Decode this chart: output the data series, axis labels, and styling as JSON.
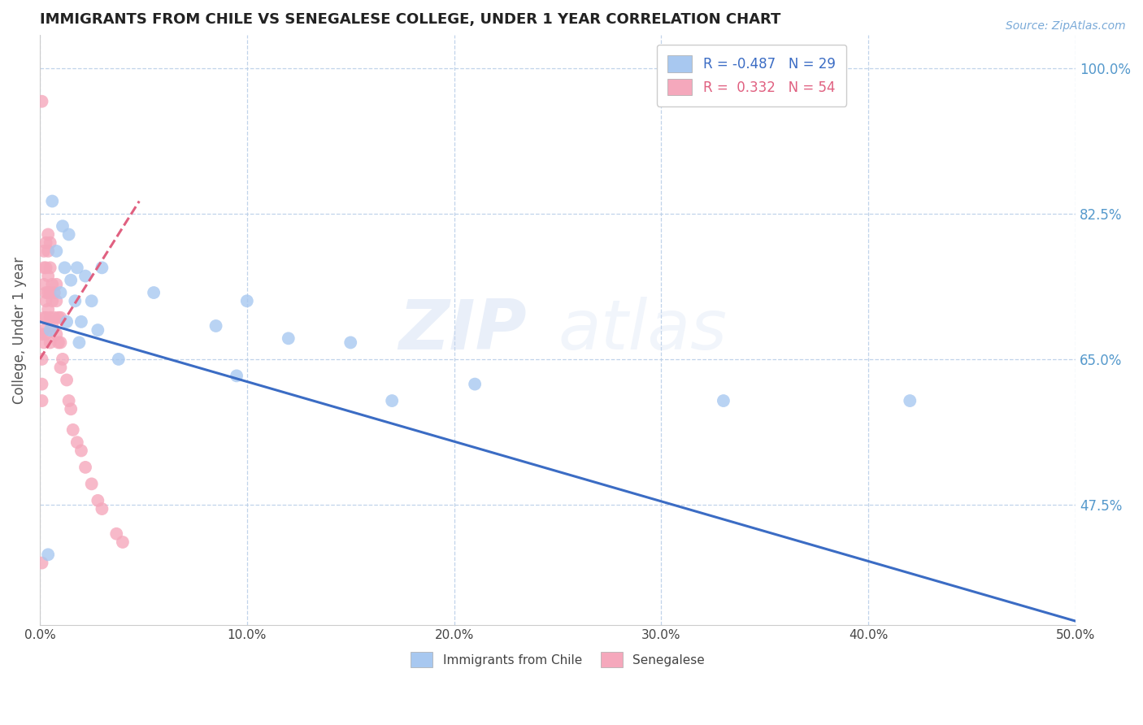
{
  "title": "IMMIGRANTS FROM CHILE VS SENEGALESE COLLEGE, UNDER 1 YEAR CORRELATION CHART",
  "source": "Source: ZipAtlas.com",
  "ylabel": "College, Under 1 year",
  "xlim": [
    0.0,
    0.5
  ],
  "ylim": [
    0.33,
    1.04
  ],
  "xticks": [
    0.0,
    0.1,
    0.2,
    0.3,
    0.4,
    0.5
  ],
  "xticklabels": [
    "0.0%",
    "10.0%",
    "20.0%",
    "30.0%",
    "40.0%",
    "50.0%"
  ],
  "yticks": [
    0.475,
    0.65,
    0.825,
    1.0
  ],
  "yticklabels": [
    "47.5%",
    "65.0%",
    "82.5%",
    "100.0%"
  ],
  "legend1_r": "R = -0.487",
  "legend1_n": "N = 29",
  "legend2_r": "R =  0.332",
  "legend2_n": "N = 54",
  "legend_bottom_label1": "Immigrants from Chile",
  "legend_bottom_label2": "Senegalese",
  "watermark_zip": "ZIP",
  "watermark_atlas": "atlas",
  "blue_color": "#A8C8F0",
  "pink_color": "#F5A8BC",
  "blue_line_color": "#3B6CC4",
  "pink_line_color": "#E06080",
  "grid_color": "#BACFE8",
  "title_color": "#222222",
  "axis_label_color": "#555555",
  "right_tick_color": "#5599CC",
  "source_color": "#7AAAD8",
  "blue_line_x0": 0.0,
  "blue_line_y0": 0.695,
  "blue_line_x1": 0.5,
  "blue_line_y1": 0.335,
  "pink_line_x0": 0.0,
  "pink_line_y0": 0.65,
  "pink_line_x1": 0.048,
  "pink_line_y1": 0.84,
  "blue_scatter_x": [
    0.004,
    0.006,
    0.008,
    0.01,
    0.011,
    0.012,
    0.014,
    0.015,
    0.017,
    0.018,
    0.02,
    0.022,
    0.025,
    0.028,
    0.03,
    0.038,
    0.055,
    0.085,
    0.095,
    0.1,
    0.12,
    0.15,
    0.17,
    0.21,
    0.33,
    0.42,
    0.005,
    0.013,
    0.019
  ],
  "blue_scatter_y": [
    0.415,
    0.84,
    0.78,
    0.73,
    0.81,
    0.76,
    0.8,
    0.745,
    0.72,
    0.76,
    0.695,
    0.75,
    0.72,
    0.685,
    0.76,
    0.65,
    0.73,
    0.69,
    0.63,
    0.72,
    0.675,
    0.67,
    0.6,
    0.62,
    0.6,
    0.6,
    0.685,
    0.695,
    0.67
  ],
  "pink_scatter_x": [
    0.001,
    0.001,
    0.001,
    0.001,
    0.001,
    0.002,
    0.002,
    0.002,
    0.002,
    0.002,
    0.002,
    0.003,
    0.003,
    0.003,
    0.003,
    0.003,
    0.003,
    0.004,
    0.004,
    0.004,
    0.004,
    0.004,
    0.005,
    0.005,
    0.005,
    0.005,
    0.005,
    0.006,
    0.006,
    0.006,
    0.007,
    0.007,
    0.008,
    0.008,
    0.008,
    0.009,
    0.009,
    0.01,
    0.01,
    0.01,
    0.011,
    0.013,
    0.014,
    0.015,
    0.016,
    0.018,
    0.02,
    0.022,
    0.025,
    0.028,
    0.03,
    0.037,
    0.04,
    0.001
  ],
  "pink_scatter_y": [
    0.96,
    0.68,
    0.65,
    0.62,
    0.6,
    0.78,
    0.76,
    0.74,
    0.7,
    0.685,
    0.67,
    0.79,
    0.76,
    0.73,
    0.72,
    0.7,
    0.68,
    0.8,
    0.78,
    0.75,
    0.73,
    0.71,
    0.79,
    0.76,
    0.73,
    0.7,
    0.67,
    0.74,
    0.72,
    0.69,
    0.73,
    0.7,
    0.74,
    0.72,
    0.68,
    0.7,
    0.67,
    0.7,
    0.67,
    0.64,
    0.65,
    0.625,
    0.6,
    0.59,
    0.565,
    0.55,
    0.54,
    0.52,
    0.5,
    0.48,
    0.47,
    0.44,
    0.43,
    0.405
  ]
}
